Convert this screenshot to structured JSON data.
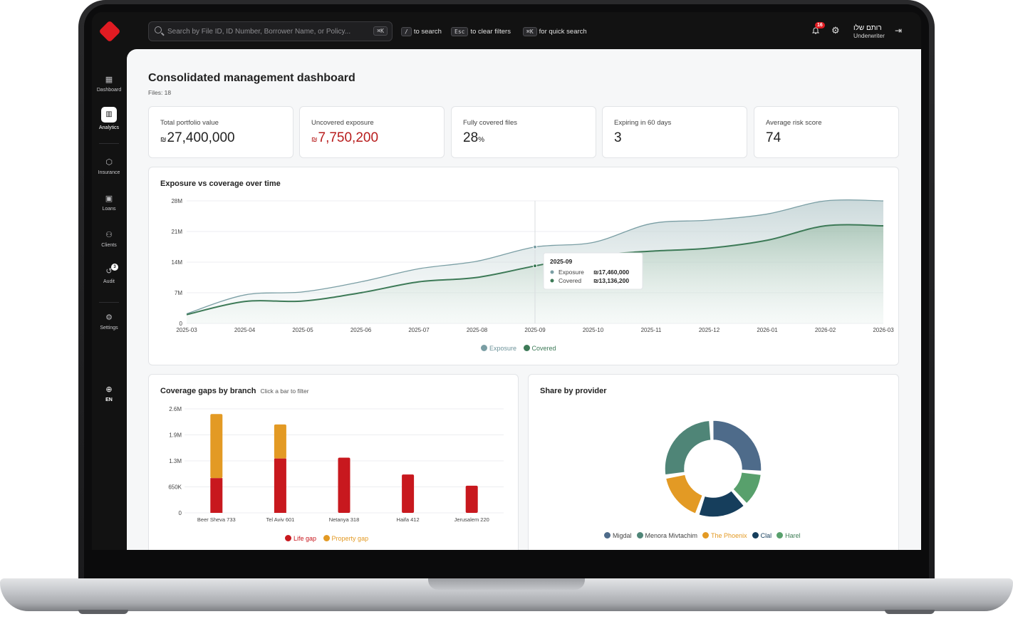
{
  "topbar": {
    "search_placeholder": "Search by File ID, ID Number, Borrower Name, or Policy...",
    "search_kbd": "⌘K",
    "hint1_key": "/",
    "hint1_text": "to search",
    "hint2_key": "Esc",
    "hint2_text": "to clear filters",
    "hint3_key": "⌘K",
    "hint3_text": "for quick search",
    "notifications_count": "16",
    "user_name": "רותם שלו",
    "user_role": "Underwriter"
  },
  "sidebar": {
    "items": [
      {
        "label": "Dashboard",
        "icon": "grid-icon"
      },
      {
        "label": "Analytics",
        "icon": "bar-chart-icon"
      },
      {
        "label": "Insurance",
        "icon": "shield-icon"
      },
      {
        "label": "Loans",
        "icon": "wallet-icon"
      },
      {
        "label": "Clients",
        "icon": "users-icon"
      },
      {
        "label": "Audit",
        "icon": "history-icon",
        "badge": "3"
      },
      {
        "label": "Settings",
        "icon": "gear-icon"
      }
    ],
    "language": "EN"
  },
  "page": {
    "title": "Consolidated management dashboard",
    "subtitle": "Files: 18"
  },
  "kpis": [
    {
      "label": "Total portfolio value",
      "currency": "₪",
      "value": "27,400,000"
    },
    {
      "label": "Uncovered exposure",
      "currency": "₪",
      "value": "7,750,200"
    },
    {
      "label": "Fully covered files",
      "value": "28",
      "unit": "%"
    },
    {
      "label": "Expiring in 60 days",
      "value": "3"
    },
    {
      "label": "Average risk score",
      "value": "74"
    }
  ],
  "colors": {
    "exposure": "#7a9ea4",
    "covered": "#3d7a57",
    "life_gap": "#c8181e",
    "property_gap": "#e39a24",
    "migdal": "#4e6b8a",
    "menora": "#4f8577",
    "phoenix": "#e39a24",
    "clal": "#163e5c",
    "harel": "#58a06c",
    "accent": "#e01b22"
  },
  "chart_data": [
    {
      "type": "area",
      "title": "Exposure vs coverage over time",
      "x": [
        "2025-03",
        "2025-04",
        "2025-05",
        "2025-06",
        "2025-07",
        "2025-08",
        "2025-09",
        "2025-10",
        "2025-11",
        "2025-12",
        "2026-01",
        "2026-02",
        "2026-03"
      ],
      "y_ticks": [
        "0",
        "7M",
        "14M",
        "21M",
        "28M"
      ],
      "ylim": [
        0,
        28000000
      ],
      "series": [
        {
          "name": "Exposure",
          "values": [
            2200000,
            6500000,
            7200000,
            9500000,
            12500000,
            14200000,
            17460000,
            18500000,
            22800000,
            23600000,
            25000000,
            28000000,
            28000000
          ]
        },
        {
          "name": "Covered",
          "values": [
            2000000,
            5000000,
            5100000,
            7000000,
            9500000,
            10500000,
            13136200,
            15500000,
            16500000,
            17200000,
            19000000,
            22300000,
            22300000
          ]
        }
      ],
      "tooltip": {
        "label": "2025-09",
        "rows": [
          {
            "name": "Exposure",
            "value": "₪17,460,000"
          },
          {
            "name": "Covered",
            "value": "₪13,136,200"
          }
        ]
      },
      "legend": [
        "Exposure",
        "Covered"
      ]
    },
    {
      "type": "bar",
      "title": "Coverage gaps by branch",
      "note": "Click a bar to filter",
      "categories": [
        "Beer Sheva 733",
        "Tel Aviv 601",
        "Netanya 318",
        "Haifa 412",
        "Jerusalem 220"
      ],
      "y_ticks": [
        "0",
        "650K",
        "1.3M",
        "1.9M",
        "2.6M"
      ],
      "ylim": [
        0,
        2600000
      ],
      "series": [
        {
          "name": "Life gap",
          "values": [
            870000,
            1360000,
            1380000,
            960000,
            680000
          ]
        },
        {
          "name": "Property gap",
          "values": [
            1600000,
            850000,
            0,
            0,
            0
          ]
        }
      ]
    },
    {
      "type": "pie",
      "title": "Share by provider",
      "labels": [
        "Migdal",
        "Menora Mivtachim",
        "The Phoenix",
        "Clal",
        "Harel"
      ],
      "values": [
        27,
        27,
        17,
        17,
        12
      ]
    }
  ]
}
